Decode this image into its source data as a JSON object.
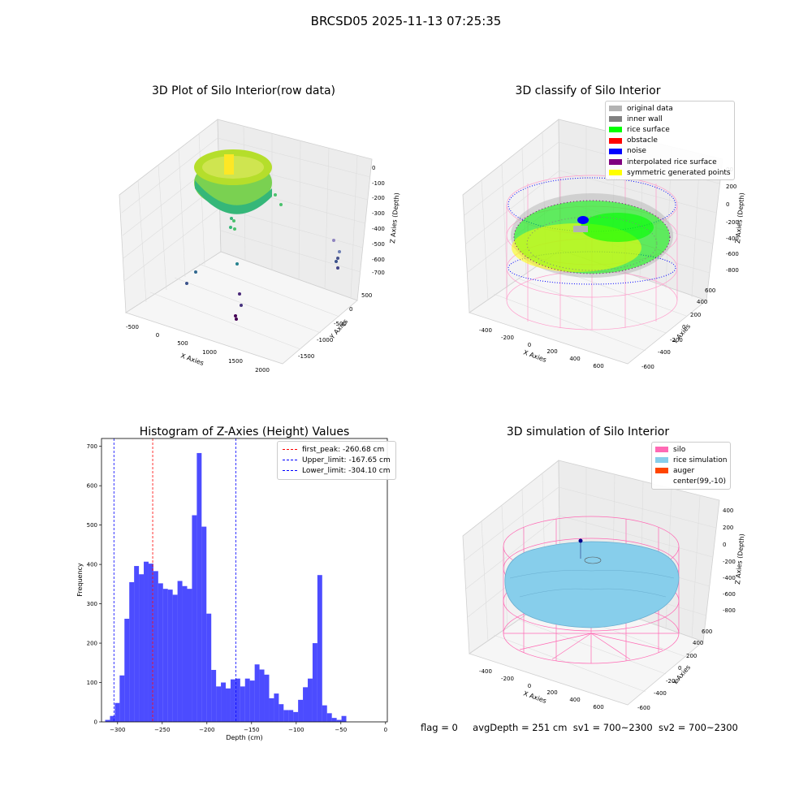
{
  "suptitle": "BRCSD05 2025-11-13 07:25:35",
  "footer": {
    "flag": "flag = 0",
    "avg_depth": "avgDepth = 251 cm",
    "sv1": "sv1 = 700~2300",
    "sv2": "sv2 = 700~2300"
  },
  "panel1": {
    "title": "3D Plot of Silo Interior(row data)",
    "xlabel": "X Axies",
    "ylabel": "Y Axies",
    "zlabel": "Z Axies (Depth)",
    "xticks": [
      "-500",
      "0",
      "500",
      "1000",
      "1500",
      "2000"
    ],
    "yticks": [
      "-1500",
      "-1000",
      "-500",
      "0",
      "500"
    ],
    "zticks": [
      "0",
      "-100",
      "-200",
      "-300",
      "-400",
      "-500",
      "-600",
      "-700"
    ]
  },
  "panel2": {
    "title": "3D classify of Silo Interior",
    "xlabel": "X Axies",
    "ylabel": "Y Axies",
    "zlabel": "Z Axies (Depth)",
    "xticks": [
      "-400",
      "-200",
      "0",
      "200",
      "400",
      "600"
    ],
    "yticks": [
      "-600",
      "-400",
      "-200",
      "0",
      "200",
      "400",
      "600"
    ],
    "zticks": [
      "200",
      "0",
      "-200",
      "-400",
      "-600",
      "-800"
    ],
    "zticks_partial": "00",
    "legend": [
      {
        "label": "original data",
        "color": "#b3b3b3"
      },
      {
        "label": "inner wall",
        "color": "#808080"
      },
      {
        "label": "rice surface",
        "color": "#00ff00"
      },
      {
        "label": "obstacle",
        "color": "#ff0000"
      },
      {
        "label": "noise",
        "color": "#0000ff"
      },
      {
        "label": "interpolated rice surface",
        "color": "#800080"
      },
      {
        "label": "symmetric generated points",
        "color": "#ffff00"
      }
    ]
  },
  "panel4": {
    "title": "3D simulation of Silo Interior",
    "xlabel": "X Axies",
    "ylabel": "Y Axies",
    "zlabel": "Z Axies (Depth)",
    "xticks": [
      "-400",
      "-200",
      "0",
      "200",
      "400",
      "600"
    ],
    "yticks": [
      "-600",
      "-400",
      "-200",
      "0",
      "200",
      "400",
      "600"
    ],
    "zticks": [
      "400",
      "200",
      "0",
      "-200",
      "-400",
      "-600",
      "-800"
    ],
    "legend": [
      {
        "label": "silo",
        "color": "#ff69b4"
      },
      {
        "label": "rice simulation",
        "color": "#87ceeb"
      },
      {
        "label": "auger",
        "color": "#ff4500"
      },
      {
        "label": "center(99,-10)",
        "color": "#ffffff"
      }
    ]
  },
  "chart_data": {
    "type": "bar",
    "title": "Histogram of Z-Axies (Height) Values",
    "xlabel": "Depth (cm)",
    "ylabel": "Frequency",
    "xlim": [
      -318,
      2
    ],
    "ylim": [
      0,
      720
    ],
    "xticks": [
      -300,
      -250,
      -200,
      -150,
      -100,
      -50,
      0
    ],
    "yticks": [
      0,
      100,
      200,
      300,
      400,
      500,
      600,
      700
    ],
    "bin_width": 5.4,
    "bin_start": -313.9,
    "values": [
      5,
      15,
      48,
      118,
      262,
      355,
      396,
      375,
      407,
      402,
      383,
      352,
      338,
      336,
      323,
      358,
      345,
      338,
      525,
      683,
      496,
      275,
      132,
      90,
      100,
      85,
      108,
      110,
      90,
      110,
      105,
      146,
      133,
      120,
      60,
      72,
      45,
      30,
      30,
      25,
      56,
      88,
      110,
      200,
      373,
      42,
      22,
      10,
      5,
      15
    ],
    "color": "#0000ff",
    "lines": [
      {
        "label": "first_peak: -260.68 cm",
        "x": -260.68,
        "color": "#ff0000"
      },
      {
        "label": "Upper_limit: -167.65 cm",
        "x": -167.65,
        "color": "#0000ff"
      },
      {
        "label": "Lower_limit: -304.10 cm",
        "x": -304.1,
        "color": "#0000ff"
      }
    ]
  }
}
